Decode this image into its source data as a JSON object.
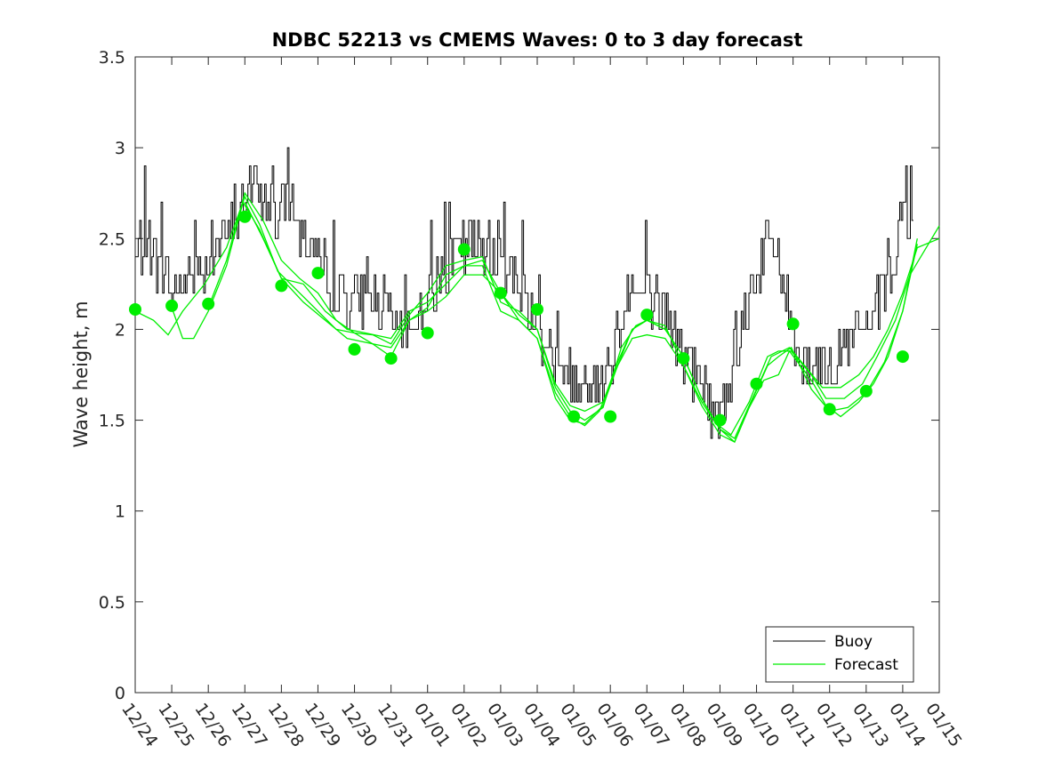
{
  "chart_data": {
    "type": "line",
    "title": "NDBC 52213 vs CMEMS Waves: 0 to 3 day forecast",
    "xlabel": "",
    "ylabel": "Wave height, m",
    "ylim": [
      0,
      3.5
    ],
    "yticks": [
      0,
      0.5,
      1,
      1.5,
      2,
      2.5,
      3,
      3.5
    ],
    "ytick_labels": [
      "0",
      "0.5",
      "1",
      "1.5",
      "2",
      "2.5",
      "3",
      "3.5"
    ],
    "xlim_days": [
      0,
      22
    ],
    "xtick_labels": [
      "12/24",
      "12/25",
      "12/26",
      "12/27",
      "12/28",
      "12/29",
      "12/30",
      "12/31",
      "01/01",
      "01/02",
      "01/03",
      "01/04",
      "01/05",
      "01/06",
      "01/07",
      "01/08",
      "01/09",
      "01/10",
      "01/11",
      "01/12",
      "01/13",
      "01/14",
      "01/15"
    ],
    "grid": false,
    "legend": {
      "placement": "bottom-right",
      "entries": [
        "Buoy",
        "Forecast"
      ]
    },
    "colors": {
      "buoy": "#000000",
      "forecast": "#00ee00",
      "axes": "#262626"
    },
    "buoy_anchors": [
      [
        0.0,
        2.4
      ],
      [
        0.3,
        2.5
      ],
      [
        0.8,
        2.3
      ],
      [
        1.0,
        2.2
      ],
      [
        1.5,
        2.3
      ],
      [
        2.0,
        2.4
      ],
      [
        2.5,
        2.5
      ],
      [
        2.9,
        2.65
      ],
      [
        3.2,
        2.8
      ],
      [
        3.5,
        2.75
      ],
      [
        3.9,
        2.6
      ],
      [
        4.2,
        2.75
      ],
      [
        4.5,
        2.55
      ],
      [
        5.0,
        2.4
      ],
      [
        5.5,
        2.2
      ],
      [
        6.0,
        2.15
      ],
      [
        6.5,
        2.2
      ],
      [
        7.0,
        2.05
      ],
      [
        7.3,
        1.95
      ],
      [
        7.6,
        2.05
      ],
      [
        8.0,
        2.2
      ],
      [
        8.5,
        2.35
      ],
      [
        9.0,
        2.45
      ],
      [
        9.5,
        2.45
      ],
      [
        10.0,
        2.4
      ],
      [
        10.5,
        2.25
      ],
      [
        11.0,
        2.05
      ],
      [
        11.4,
        1.85
      ],
      [
        11.8,
        1.7
      ],
      [
        12.2,
        1.7
      ],
      [
        12.6,
        1.7
      ],
      [
        13.0,
        1.85
      ],
      [
        13.5,
        2.2
      ],
      [
        14.0,
        2.2
      ],
      [
        14.5,
        2.1
      ],
      [
        15.0,
        1.85
      ],
      [
        15.5,
        1.7
      ],
      [
        15.9,
        1.5
      ],
      [
        16.3,
        1.75
      ],
      [
        16.8,
        2.2
      ],
      [
        17.3,
        2.5
      ],
      [
        17.6,
        2.4
      ],
      [
        17.9,
        2.05
      ],
      [
        18.2,
        1.85
      ],
      [
        18.7,
        1.8
      ],
      [
        19.2,
        1.85
      ],
      [
        19.6,
        1.95
      ],
      [
        20.0,
        2.0
      ],
      [
        20.5,
        2.2
      ],
      [
        21.0,
        2.5
      ],
      [
        21.3,
        2.55
      ]
    ],
    "forecast_series": [
      {
        "values": [
          [
            0.0,
            2.1
          ],
          [
            0.5,
            2.05
          ],
          [
            0.9,
            1.97
          ],
          [
            1.3,
            2.1
          ],
          [
            1.9,
            2.25
          ],
          [
            2.5,
            2.45
          ],
          [
            3.0,
            2.73
          ],
          [
            3.4,
            2.58
          ],
          [
            3.9,
            2.32
          ],
          [
            4.5,
            2.2
          ],
          [
            5.0,
            2.1
          ],
          [
            5.5,
            2.0
          ],
          [
            6.0,
            1.98
          ],
          [
            6.5,
            1.92
          ],
          [
            7.0,
            1.85
          ],
          [
            7.5,
            2.05
          ],
          [
            8.0,
            2.1
          ],
          [
            8.5,
            2.18
          ],
          [
            9.0,
            2.3
          ],
          [
            9.5,
            2.3
          ],
          [
            10.0,
            2.2
          ],
          [
            10.5,
            2.05
          ],
          [
            11.0,
            1.95
          ],
          [
            11.5,
            1.65
          ],
          [
            11.9,
            1.52
          ],
          [
            12.3,
            1.47
          ],
          [
            12.7,
            1.55
          ],
          [
            13.2,
            1.8
          ],
          [
            13.6,
            2.0
          ],
          [
            14.0,
            2.05
          ],
          [
            14.5,
            2.0
          ],
          [
            15.0,
            1.85
          ],
          [
            15.5,
            1.62
          ],
          [
            16.0,
            1.45
          ],
          [
            16.4,
            1.38
          ],
          [
            16.8,
            1.57
          ],
          [
            17.2,
            1.72
          ],
          [
            17.6,
            1.75
          ],
          [
            17.9,
            1.88
          ],
          [
            18.5,
            1.72
          ],
          [
            18.9,
            1.58
          ],
          [
            19.3,
            1.52
          ],
          [
            19.8,
            1.6
          ],
          [
            20.2,
            1.7
          ],
          [
            20.6,
            1.85
          ],
          [
            21.0,
            2.1
          ],
          [
            21.4,
            2.47
          ]
        ]
      },
      {
        "values": [
          [
            1.0,
            2.12
          ],
          [
            1.3,
            1.95
          ],
          [
            1.6,
            1.95
          ],
          [
            2.0,
            2.1
          ],
          [
            2.5,
            2.35
          ],
          [
            2.95,
            2.7
          ],
          [
            3.4,
            2.55
          ],
          [
            4.0,
            2.28
          ],
          [
            4.6,
            2.15
          ],
          [
            5.2,
            2.05
          ],
          [
            5.8,
            1.95
          ],
          [
            6.5,
            1.92
          ],
          [
            7.0,
            1.9
          ],
          [
            7.5,
            2.05
          ],
          [
            8.0,
            2.12
          ],
          [
            8.5,
            2.3
          ],
          [
            9.0,
            2.35
          ],
          [
            9.5,
            2.35
          ],
          [
            10.0,
            2.1
          ],
          [
            10.5,
            2.05
          ],
          [
            11.0,
            1.95
          ],
          [
            11.5,
            1.62
          ],
          [
            11.9,
            1.5
          ],
          [
            12.3,
            1.48
          ],
          [
            12.8,
            1.58
          ],
          [
            13.2,
            1.8
          ],
          [
            13.6,
            1.95
          ],
          [
            14.0,
            1.97
          ],
          [
            14.5,
            1.95
          ],
          [
            15.0,
            1.8
          ],
          [
            15.5,
            1.58
          ],
          [
            16.0,
            1.42
          ],
          [
            16.4,
            1.38
          ],
          [
            16.9,
            1.62
          ],
          [
            17.3,
            1.8
          ],
          [
            17.6,
            1.85
          ],
          [
            17.95,
            1.9
          ],
          [
            18.5,
            1.67
          ],
          [
            19.0,
            1.55
          ],
          [
            19.5,
            1.57
          ],
          [
            20.0,
            1.65
          ],
          [
            20.5,
            1.82
          ],
          [
            21.0,
            2.1
          ],
          [
            21.4,
            2.5
          ]
        ]
      },
      {
        "values": [
          [
            2.0,
            2.12
          ],
          [
            2.5,
            2.38
          ],
          [
            3.0,
            2.75
          ],
          [
            3.5,
            2.6
          ],
          [
            4.0,
            2.38
          ],
          [
            4.5,
            2.28
          ],
          [
            5.0,
            2.2
          ],
          [
            5.5,
            2.05
          ],
          [
            6.0,
            1.98
          ],
          [
            6.5,
            1.97
          ],
          [
            7.0,
            1.92
          ],
          [
            7.5,
            2.08
          ],
          [
            8.0,
            2.2
          ],
          [
            8.5,
            2.35
          ],
          [
            9.0,
            2.38
          ],
          [
            9.5,
            2.4
          ],
          [
            10.0,
            2.15
          ],
          [
            10.5,
            2.1
          ],
          [
            11.0,
            2.0
          ],
          [
            11.5,
            1.7
          ],
          [
            11.9,
            1.58
          ],
          [
            12.3,
            1.55
          ],
          [
            12.8,
            1.6
          ],
          [
            13.2,
            1.82
          ],
          [
            13.6,
            2.0
          ],
          [
            14.0,
            2.05
          ],
          [
            14.5,
            2.0
          ],
          [
            15.0,
            1.85
          ],
          [
            15.5,
            1.62
          ],
          [
            15.9,
            1.48
          ],
          [
            16.3,
            1.42
          ],
          [
            16.8,
            1.6
          ],
          [
            17.3,
            1.85
          ],
          [
            17.6,
            1.88
          ],
          [
            17.95,
            1.88
          ],
          [
            18.5,
            1.75
          ],
          [
            18.9,
            1.62
          ],
          [
            19.4,
            1.62
          ],
          [
            19.9,
            1.7
          ],
          [
            20.3,
            1.85
          ],
          [
            20.8,
            2.05
          ],
          [
            21.2,
            2.3
          ],
          [
            22.0,
            2.57
          ]
        ]
      },
      {
        "values": [
          [
            3.0,
            2.7
          ],
          [
            3.5,
            2.5
          ],
          [
            4.0,
            2.28
          ],
          [
            4.6,
            2.25
          ],
          [
            5.2,
            2.1
          ],
          [
            5.8,
            2.0
          ],
          [
            6.3,
            1.98
          ],
          [
            7.0,
            1.95
          ],
          [
            7.5,
            2.1
          ],
          [
            8.0,
            2.15
          ],
          [
            8.5,
            2.25
          ],
          [
            9.0,
            2.35
          ],
          [
            9.5,
            2.38
          ],
          [
            10.0,
            2.2
          ],
          [
            10.5,
            2.08
          ],
          [
            11.0,
            2.0
          ],
          [
            11.5,
            1.68
          ],
          [
            11.9,
            1.55
          ],
          [
            12.3,
            1.5
          ],
          [
            12.8,
            1.57
          ],
          [
            13.3,
            1.9
          ],
          [
            13.7,
            2.02
          ],
          [
            14.0,
            2.05
          ],
          [
            14.5,
            2.02
          ],
          [
            15.0,
            1.8
          ],
          [
            15.5,
            1.6
          ],
          [
            16.0,
            1.45
          ],
          [
            16.4,
            1.4
          ],
          [
            16.8,
            1.58
          ],
          [
            17.4,
            1.85
          ],
          [
            17.9,
            1.9
          ],
          [
            18.4,
            1.78
          ],
          [
            18.8,
            1.68
          ],
          [
            19.3,
            1.68
          ],
          [
            19.8,
            1.75
          ],
          [
            20.2,
            1.85
          ],
          [
            20.6,
            2.0
          ],
          [
            21.0,
            2.2
          ],
          [
            21.4,
            2.45
          ],
          [
            22.0,
            2.5
          ]
        ]
      }
    ],
    "observation_markers": [
      [
        0,
        2.11
      ],
      [
        1,
        2.13
      ],
      [
        2,
        2.14
      ],
      [
        3,
        2.62
      ],
      [
        4,
        2.24
      ],
      [
        5,
        2.31
      ],
      [
        6,
        1.89
      ],
      [
        7,
        1.84
      ],
      [
        8,
        1.98
      ],
      [
        9,
        2.44
      ],
      [
        10,
        2.2
      ],
      [
        11,
        2.11
      ],
      [
        12,
        1.52
      ],
      [
        13,
        1.52
      ],
      [
        14,
        2.08
      ],
      [
        15,
        1.84
      ],
      [
        16,
        1.5
      ],
      [
        17,
        1.7
      ],
      [
        18,
        2.03
      ],
      [
        19,
        1.56
      ],
      [
        20,
        1.66
      ],
      [
        21,
        1.85
      ]
    ]
  }
}
